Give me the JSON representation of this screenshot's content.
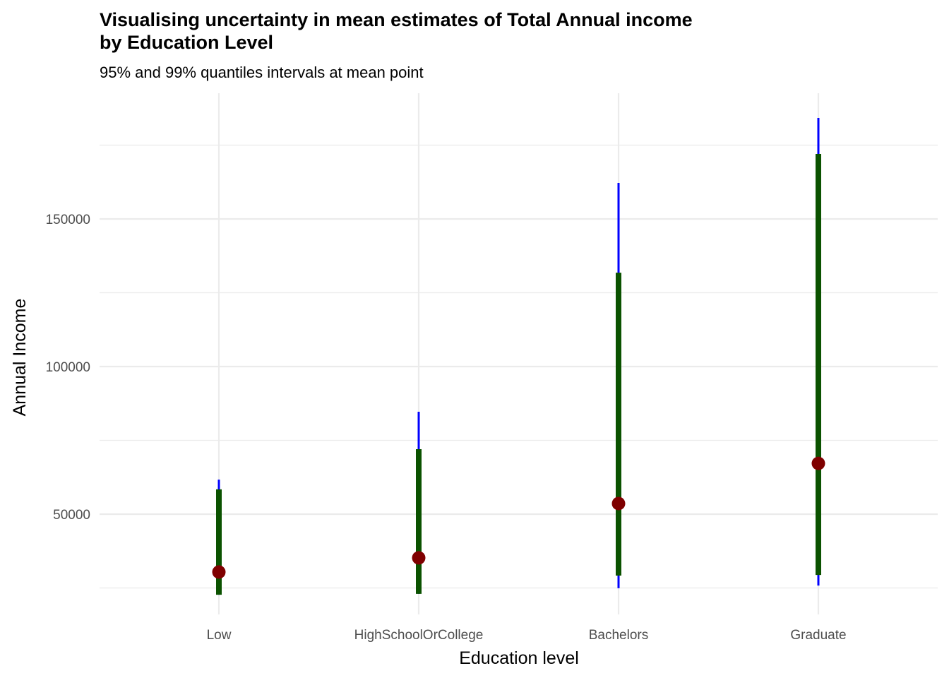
{
  "chart_data": {
    "type": "interval",
    "title": "Visualising uncertainty in mean estimates of Total Annual income by Education Level",
    "title_lines": [
      "Visualising uncertainty in mean estimates of Total Annual income",
      "by Education Level"
    ],
    "subtitle": "95% and 99% quantiles intervals at mean point",
    "xlabel": "Education level",
    "ylabel": "Annual Income",
    "categories": [
      "Low",
      "HighSchoolOrCollege",
      "Bachelors",
      "Graduate"
    ],
    "mean": [
      30400,
      35200,
      53600,
      67200
    ],
    "interval_95": [
      [
        22700,
        58400
      ],
      [
        23000,
        72000
      ],
      [
        29200,
        131800
      ],
      [
        29400,
        172000
      ]
    ],
    "interval_99": [
      [
        22700,
        61700
      ],
      [
        23000,
        84700
      ],
      [
        24900,
        162200
      ],
      [
        25800,
        184200
      ]
    ],
    "yticks": [
      50000,
      100000,
      150000
    ],
    "ytick_labels": [
      "50000",
      "100000",
      "150000"
    ],
    "ylim": [
      15000,
      191000
    ],
    "grid": true,
    "colors": {
      "interval_95": "#0b5200",
      "interval_99": "#0000ff",
      "mean": "#7f0000",
      "grid": "#ebebeb"
    }
  }
}
